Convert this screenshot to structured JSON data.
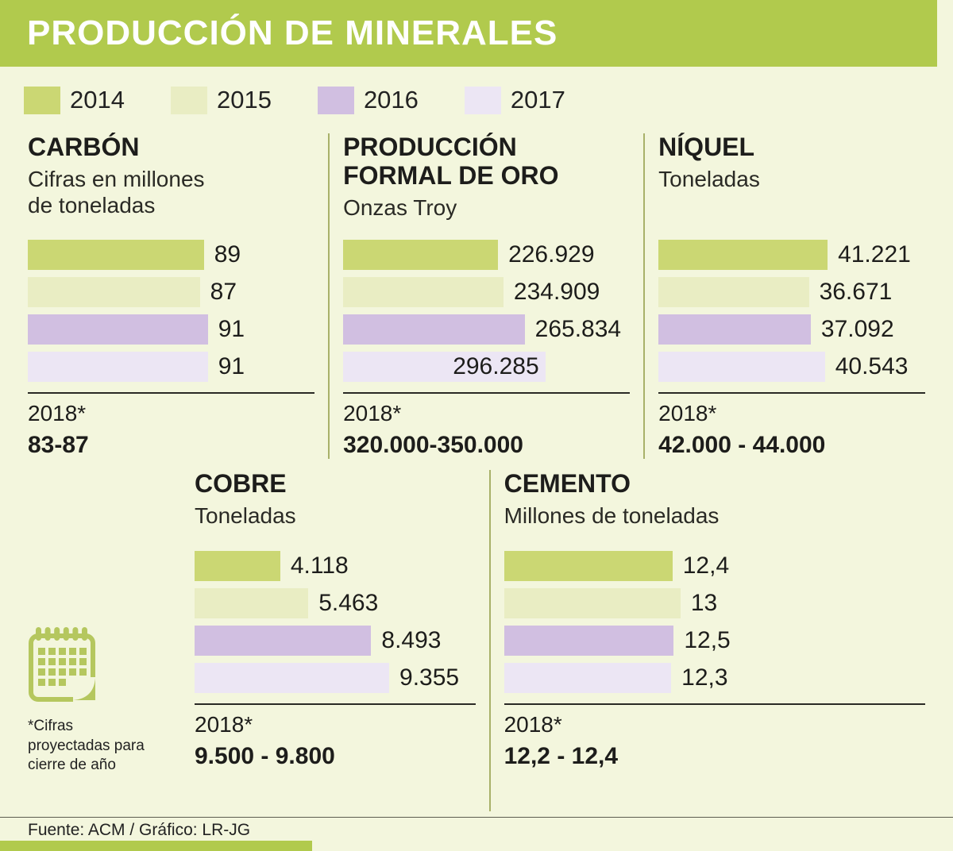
{
  "page": {
    "title": "PRODUCCIÓN DE MINERALES",
    "source": "Fuente: ACM / Gráfico: LR-JG",
    "projection_note": "*Cifras proyectadas para cierre de año",
    "colors": {
      "banner": "#b1ca4d",
      "background": "#f3f6dd",
      "divider": "#a8b169",
      "text": "#1d1d1b"
    }
  },
  "legend": {
    "items": [
      {
        "label": "2014",
        "color": "#cbd773"
      },
      {
        "label": "2015",
        "color": "#e9edc3"
      },
      {
        "label": "2016",
        "color": "#d1bfe1"
      },
      {
        "label": "2017",
        "color": "#ece6f4"
      }
    ]
  },
  "chart_data": [
    {
      "type": "bar",
      "row": 1,
      "title": "CARBÓN",
      "subtitle": "Cifras en millones\nde toneladas",
      "categories": [
        "2014",
        "2015",
        "2016",
        "2017"
      ],
      "values": [
        89,
        87,
        91,
        91
      ],
      "value_labels": [
        "89",
        "87",
        "91",
        "91"
      ],
      "xlim": [
        0,
        145
      ],
      "projection_year": "2018*",
      "projection_range": "83-87"
    },
    {
      "type": "bar",
      "row": 1,
      "title": "PRODUCCIÓN\nFORMAL DE ORO",
      "subtitle": "Onzas Troy",
      "categories": [
        "2014",
        "2015",
        "2016",
        "2017"
      ],
      "values": [
        226929,
        234909,
        265834,
        296285
      ],
      "value_labels": [
        "226.929",
        "234.909",
        "265.834",
        "296.285"
      ],
      "label_inside": [
        false,
        false,
        false,
        true
      ],
      "xlim": [
        0,
        420000
      ],
      "projection_year": "2018*",
      "projection_range": "320.000-350.000"
    },
    {
      "type": "bar",
      "row": 1,
      "title": "NÍQUEL",
      "subtitle": "Toneladas",
      "categories": [
        "2014",
        "2015",
        "2016",
        "2017"
      ],
      "values": [
        41221,
        36671,
        37092,
        40543
      ],
      "value_labels": [
        "41.221",
        "36.671",
        "37.092",
        "40.543"
      ],
      "xlim": [
        0,
        65000
      ],
      "projection_year": "2018*",
      "projection_range": "42.000 - 44.000"
    },
    {
      "type": "bar",
      "row": 2,
      "title": "COBRE",
      "subtitle": "Toneladas",
      "categories": [
        "2014",
        "2015",
        "2016",
        "2017"
      ],
      "values": [
        4118,
        5463,
        8493,
        9355
      ],
      "value_labels": [
        "4.118",
        "5.463",
        "8.493",
        "9.355"
      ],
      "xlim": [
        0,
        13500
      ],
      "projection_year": "2018*",
      "projection_range": "9.500 - 9.800"
    },
    {
      "type": "bar",
      "row": 2,
      "title": "CEMENTO",
      "subtitle": "Millones de toneladas",
      "categories": [
        "2014",
        "2015",
        "2016",
        "2017"
      ],
      "values": [
        12.4,
        13,
        12.5,
        12.3
      ],
      "value_labels": [
        "12,4",
        "13",
        "12,5",
        "12,3"
      ],
      "xlim": [
        0,
        31
      ],
      "projection_year": "2018*",
      "projection_range": "12,2 - 12,4"
    }
  ]
}
